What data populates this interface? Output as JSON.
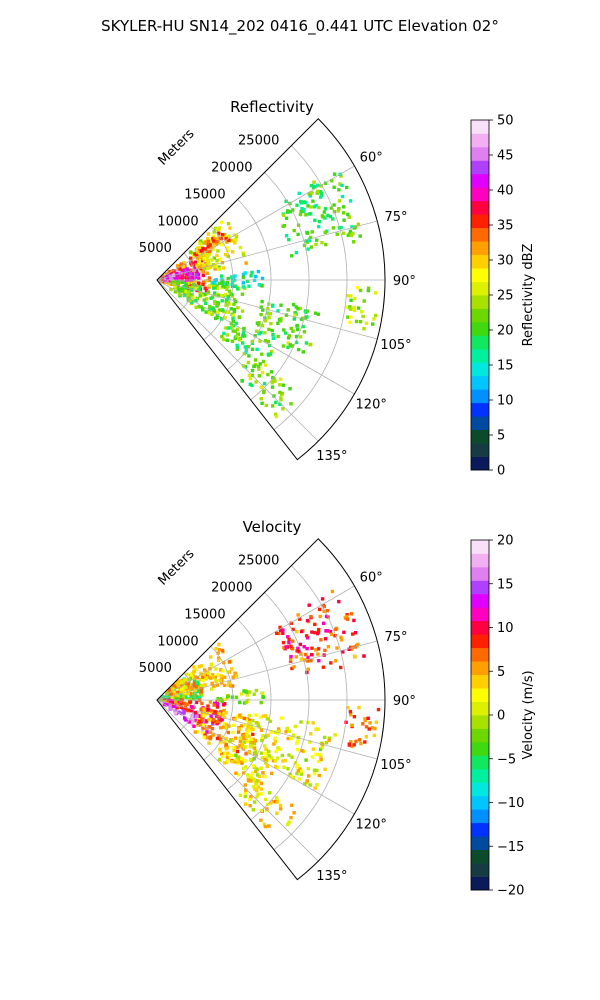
{
  "figure": {
    "title": "SKYLER-HU  SN14_202  0416_0.441 UTC Elevation 02°"
  },
  "chart_data": [
    {
      "type": "heatmap",
      "subtype": "polar-sector",
      "title": "Reflectivity",
      "range_label": "Meters",
      "range_ticks": [
        5000,
        10000,
        15000,
        20000,
        25000
      ],
      "range_tick_labels": [
        "5000",
        "10000",
        "15000",
        "20000",
        "25000"
      ],
      "rmax": 30000,
      "theta_min_deg": 45,
      "theta_max_deg": 142,
      "angle_ticks": [
        60,
        75,
        90,
        105,
        120,
        135
      ],
      "angle_tick_labels": [
        "60°",
        "75°",
        "90°",
        "105°",
        "120°",
        "135°"
      ],
      "grid": true,
      "colorbar": {
        "label": "Reflectivity dBZ",
        "min": 0,
        "max": 50,
        "ticks": [
          0,
          5,
          10,
          15,
          20,
          25,
          30,
          35,
          40,
          45,
          50
        ],
        "tick_labels": [
          "0",
          "5",
          "10",
          "15",
          "20",
          "25",
          "30",
          "35",
          "40",
          "45",
          "50"
        ],
        "colors": [
          "#0a1a5a",
          "#173b45",
          "#0b4a2a",
          "#004aa0",
          "#0033ff",
          "#0090ff",
          "#00c6ff",
          "#00e8e0",
          "#00f0a0",
          "#10e860",
          "#40d810",
          "#6cd800",
          "#a8e000",
          "#dcf000",
          "#ffff00",
          "#ffd000",
          "#ffa000",
          "#ff6a00",
          "#ff2000",
          "#ff0040",
          "#ff00c0",
          "#e000ff",
          "#b040ff",
          "#e080f0",
          "#f2b0f2",
          "#f8e0f8"
        ]
      },
      "echo_regions": [
        {
          "r_min": 0,
          "r_max": 7000,
          "theta_min": 55,
          "theta_max": 108,
          "value": 33
        },
        {
          "r_min": 1000,
          "r_max": 5500,
          "theta_min": 68,
          "theta_max": 95,
          "value": 42
        },
        {
          "r_min": 5500,
          "r_max": 12000,
          "theta_min": 48,
          "theta_max": 80,
          "value": 27
        },
        {
          "r_min": 6000,
          "r_max": 11000,
          "theta_min": 52,
          "theta_max": 62,
          "value": 34
        },
        {
          "r_min": 2000,
          "r_max": 12000,
          "theta_min": 95,
          "theta_max": 125,
          "value": 22
        },
        {
          "r_min": 7000,
          "r_max": 14000,
          "theta_min": 85,
          "theta_max": 95,
          "value": 16
        },
        {
          "r_min": 14000,
          "r_max": 22000,
          "theta_min": 100,
          "theta_max": 118,
          "value": 21
        },
        {
          "r_min": 11000,
          "r_max": 18000,
          "theta_min": 118,
          "theta_max": 132,
          "value": 20
        },
        {
          "r_min": 25000,
          "r_max": 29500,
          "theta_min": 92,
          "theta_max": 104,
          "value": 24
        },
        {
          "r_min": 18000,
          "r_max": 28000,
          "theta_min": 58,
          "theta_max": 80,
          "value": 20
        },
        {
          "r_min": 16000,
          "r_max": 24000,
          "theta_min": 128,
          "theta_max": 140,
          "value": 22
        }
      ]
    },
    {
      "type": "heatmap",
      "subtype": "polar-sector",
      "title": "Velocity",
      "range_label": "Meters",
      "range_ticks": [
        5000,
        10000,
        15000,
        20000,
        25000
      ],
      "range_tick_labels": [
        "5000",
        "10000",
        "15000",
        "20000",
        "25000"
      ],
      "rmax": 30000,
      "theta_min_deg": 45,
      "theta_max_deg": 142,
      "angle_ticks": [
        60,
        75,
        90,
        105,
        120,
        135
      ],
      "angle_tick_labels": [
        "60°",
        "75°",
        "90°",
        "105°",
        "120°",
        "135°"
      ],
      "grid": true,
      "colorbar": {
        "label": "Velocity (m/s)",
        "min": -20,
        "max": 20,
        "ticks": [
          -20,
          -15,
          -10,
          -5,
          0,
          5,
          10,
          15,
          20
        ],
        "tick_labels": [
          "−20",
          "−15",
          "−10",
          "−5",
          "0",
          "5",
          "10",
          "15",
          "20"
        ],
        "colors": [
          "#0a1a5a",
          "#173b45",
          "#0b4a2a",
          "#004aa0",
          "#0033ff",
          "#0090ff",
          "#00c6ff",
          "#00e8e0",
          "#00f0a0",
          "#10e860",
          "#40d810",
          "#6cd800",
          "#a8e000",
          "#dcf000",
          "#ffff00",
          "#ffd000",
          "#ffa000",
          "#ff6a00",
          "#ff2000",
          "#ff0040",
          "#ff00c0",
          "#e000ff",
          "#b040ff",
          "#e080f0",
          "#f2b0f2",
          "#f8e0f8"
        ]
      },
      "echo_regions": [
        {
          "r_min": 0,
          "r_max": 6000,
          "theta_min": 52,
          "theta_max": 90,
          "value": -3
        },
        {
          "r_min": 2000,
          "r_max": 11000,
          "theta_min": 48,
          "theta_max": 80,
          "value": 4
        },
        {
          "r_min": 1000,
          "r_max": 9000,
          "theta_min": 90,
          "theta_max": 112,
          "value": 9
        },
        {
          "r_min": 1000,
          "r_max": 8000,
          "theta_min": 112,
          "theta_max": 126,
          "value": 15
        },
        {
          "r_min": 6000,
          "r_max": 14000,
          "theta_min": 100,
          "theta_max": 130,
          "value": 5
        },
        {
          "r_min": 12000,
          "r_max": 24000,
          "theta_min": 98,
          "theta_max": 120,
          "value": 2
        },
        {
          "r_min": 11000,
          "r_max": 18000,
          "theta_min": 118,
          "theta_max": 134,
          "value": 2
        },
        {
          "r_min": 25000,
          "r_max": 29500,
          "theta_min": 92,
          "theta_max": 104,
          "value": 7
        },
        {
          "r_min": 8000,
          "r_max": 14000,
          "theta_min": 84,
          "theta_max": 92,
          "value": -1
        },
        {
          "r_min": 18000,
          "r_max": 28000,
          "theta_min": 58,
          "theta_max": 80,
          "value": 8
        },
        {
          "r_min": 16000,
          "r_max": 24000,
          "theta_min": 128,
          "theta_max": 140,
          "value": 3
        }
      ]
    }
  ]
}
